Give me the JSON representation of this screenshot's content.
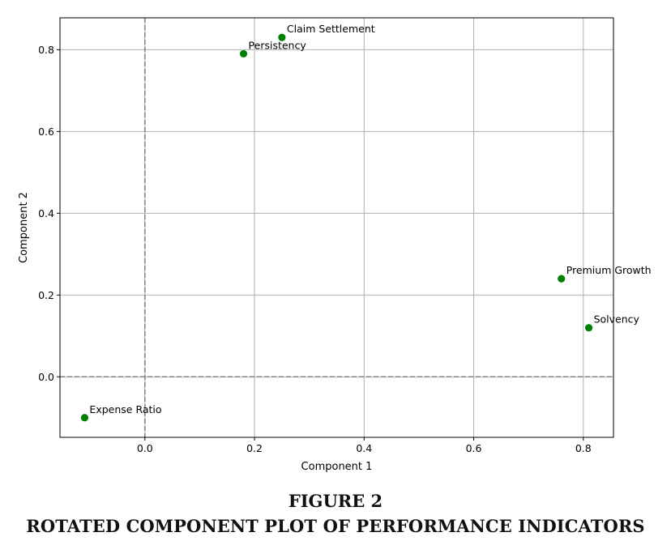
{
  "chart_data": {
    "type": "scatter",
    "title": "",
    "xlabel": "Component 1",
    "ylabel": "Component 2",
    "xlim": [
      -0.155,
      0.855
    ],
    "ylim": [
      -0.148,
      0.878
    ],
    "xticks": [
      0.0,
      0.2,
      0.4,
      0.6,
      0.8
    ],
    "yticks": [
      0.0,
      0.2,
      0.4,
      0.6,
      0.8
    ],
    "xtick_labels": [
      "0.0",
      "0.2",
      "0.4",
      "0.6",
      "0.8"
    ],
    "ytick_labels": [
      "0.0",
      "0.2",
      "0.4",
      "0.6",
      "0.8"
    ],
    "grid": true,
    "reference_lines": {
      "x": 0,
      "y": 0,
      "style": "dashed"
    },
    "marker_color": "#008000",
    "grid_color": "#b0b0b0",
    "reference_color": "#808080",
    "points": [
      {
        "label": "Claim Settlement",
        "x": 0.25,
        "y": 0.83
      },
      {
        "label": "Persistency",
        "x": 0.18,
        "y": 0.79
      },
      {
        "label": "Premium Growth",
        "x": 0.76,
        "y": 0.24
      },
      {
        "label": "Solvency",
        "x": 0.81,
        "y": 0.12
      },
      {
        "label": "Expense Ratio",
        "x": -0.11,
        "y": -0.1
      }
    ]
  },
  "caption": {
    "figure_number": "FIGURE 2",
    "title": "ROTATED COMPONENT PLOT OF PERFORMANCE INDICATORS"
  }
}
